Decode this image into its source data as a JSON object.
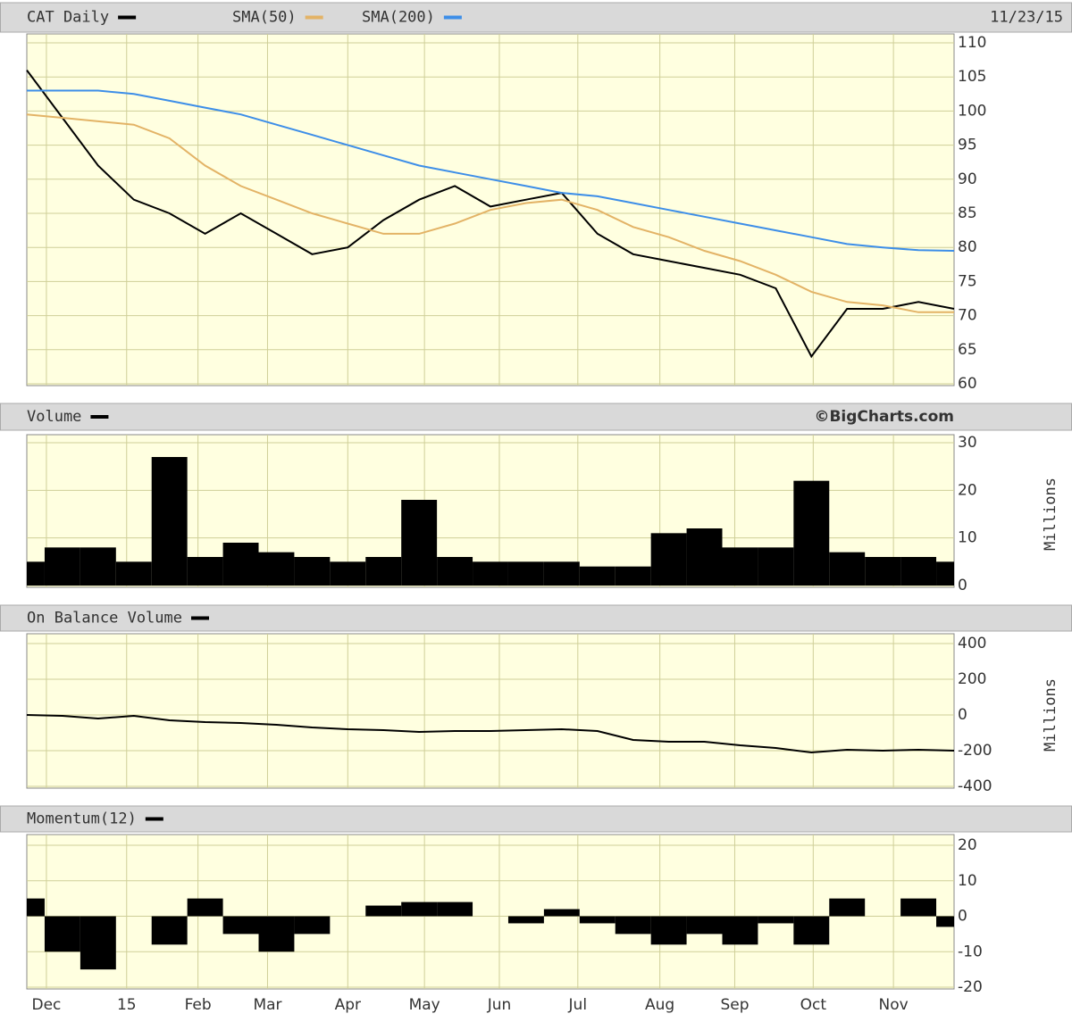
{
  "chart_data": [
    {
      "type": "line",
      "date": "11/23/15",
      "x": [
        0,
        2,
        4,
        6,
        8,
        10,
        12,
        14,
        16,
        18,
        20,
        22,
        24,
        26,
        28,
        30,
        32,
        34,
        36,
        38,
        40,
        42,
        44,
        46,
        48,
        50,
        52
      ],
      "xlim": [
        0,
        52
      ],
      "ylim": [
        60,
        110
      ],
      "yticks": [
        60,
        65,
        70,
        75,
        80,
        85,
        90,
        95,
        100,
        105,
        110
      ],
      "grid": true,
      "series": [
        {
          "name": "CAT Daily",
          "color": "#000000",
          "values": [
            106,
            99,
            92,
            87,
            85,
            82,
            85,
            82,
            79,
            80,
            84,
            87,
            89,
            86,
            87,
            88,
            82,
            79,
            78,
            77,
            76,
            74,
            64,
            71,
            71,
            72,
            71
          ]
        },
        {
          "name": "SMA(50)",
          "color": "#e3b366",
          "values": [
            99.5,
            99,
            98.5,
            98,
            96,
            92,
            89,
            87,
            85,
            83.5,
            82,
            82,
            83.5,
            85.5,
            86.5,
            87,
            85.5,
            83,
            81.5,
            79.5,
            78,
            76,
            73.5,
            72,
            71.5,
            70.5,
            70.5
          ]
        },
        {
          "name": "SMA(200)",
          "color": "#3d8ee8",
          "values": [
            103,
            103,
            103,
            102.5,
            101.5,
            100.5,
            99.5,
            98,
            96.5,
            95,
            93.5,
            92,
            91,
            90,
            89,
            88,
            87.5,
            86.5,
            85.5,
            84.5,
            83.5,
            82.5,
            81.5,
            80.5,
            80,
            79.6,
            79.5
          ]
        }
      ]
    },
    {
      "type": "bar",
      "source": "©BigCharts.com",
      "ylabel": "Millions",
      "x": [
        0,
        2,
        4,
        6,
        8,
        10,
        12,
        14,
        16,
        18,
        20,
        22,
        24,
        26,
        28,
        30,
        32,
        34,
        36,
        38,
        40,
        42,
        44,
        46,
        48,
        50,
        52
      ],
      "xlim": [
        0,
        52
      ],
      "ylim": [
        0,
        30
      ],
      "yticks": [
        0,
        10,
        20,
        30
      ],
      "grid": true,
      "series": [
        {
          "name": "Volume",
          "color": "#000000",
          "values": [
            5,
            8,
            8,
            5,
            27,
            6,
            9,
            7,
            6,
            5,
            6,
            18,
            6,
            5,
            5,
            5,
            4,
            4,
            11,
            12,
            8,
            8,
            22,
            7,
            6,
            6,
            5
          ]
        }
      ]
    },
    {
      "type": "line",
      "ylabel": "Millions",
      "x": [
        0,
        2,
        4,
        6,
        8,
        10,
        12,
        14,
        16,
        18,
        20,
        22,
        24,
        26,
        28,
        30,
        32,
        34,
        36,
        38,
        40,
        42,
        44,
        46,
        48,
        50,
        52
      ],
      "xlim": [
        0,
        52
      ],
      "ylim": [
        -400,
        400
      ],
      "yticks": [
        -400,
        -200,
        0,
        200,
        400
      ],
      "grid": true,
      "series": [
        {
          "name": "On Balance Volume",
          "color": "#000000",
          "values": [
            0,
            -5,
            -20,
            -5,
            -30,
            -40,
            -45,
            -55,
            -70,
            -80,
            -85,
            -95,
            -90,
            -90,
            -85,
            -80,
            -90,
            -140,
            -150,
            -150,
            -170,
            -185,
            -210,
            -195,
            -200,
            -195,
            -200
          ]
        }
      ]
    },
    {
      "type": "bar",
      "x": [
        0,
        2,
        4,
        6,
        8,
        10,
        12,
        14,
        16,
        18,
        20,
        22,
        24,
        26,
        28,
        30,
        32,
        34,
        36,
        38,
        40,
        42,
        44,
        46,
        48,
        50,
        52
      ],
      "xlim": [
        0,
        52
      ],
      "ylim": [
        -20,
        20
      ],
      "yticks": [
        -20,
        -10,
        0,
        10,
        20
      ],
      "grid": true,
      "xticks": [
        {
          "value": 1.1,
          "label": "Dec"
        },
        {
          "value": 5.6,
          "label": "15"
        },
        {
          "value": 9.6,
          "label": "Feb"
        },
        {
          "value": 13.5,
          "label": "Mar"
        },
        {
          "value": 18.0,
          "label": "Apr"
        },
        {
          "value": 22.3,
          "label": "May"
        },
        {
          "value": 26.5,
          "label": "Jun"
        },
        {
          "value": 30.9,
          "label": "Jul"
        },
        {
          "value": 35.5,
          "label": "Aug"
        },
        {
          "value": 39.7,
          "label": "Sep"
        },
        {
          "value": 44.1,
          "label": "Oct"
        },
        {
          "value": 48.6,
          "label": "Nov"
        }
      ],
      "series": [
        {
          "name": "Momentum(12)",
          "color": "#000000",
          "values": [
            5,
            -10,
            -15,
            0,
            -8,
            5,
            -5,
            -10,
            -5,
            0,
            3,
            4,
            4,
            0,
            -2,
            2,
            -2,
            -5,
            -8,
            -5,
            -8,
            -2,
            -8,
            5,
            0,
            5,
            -3
          ]
        }
      ]
    }
  ]
}
